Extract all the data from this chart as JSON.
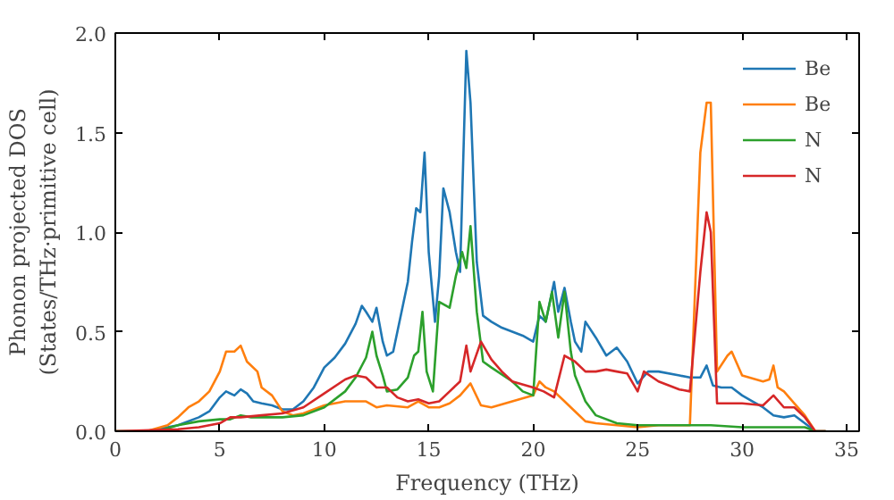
{
  "chart_data": {
    "type": "line",
    "xlabel": "Frequency (THz)",
    "ylabel": "Phonon projected DOS\n(States/THz·primitive cell)",
    "xlim": [
      0,
      35.6
    ],
    "ylim": [
      0,
      2.0
    ],
    "xticks": [
      0,
      5,
      10,
      15,
      20,
      25,
      30,
      35
    ],
    "yticks": [
      {
        "value": 0,
        "label": "0.0"
      },
      {
        "value": 0.5,
        "label": "0.5"
      },
      {
        "value": 1.0,
        "label": "1.0"
      },
      {
        "value": 1.5,
        "label": "1.5"
      },
      {
        "value": 2.0,
        "label": "2.0"
      }
    ],
    "grid": false,
    "legend": "top right",
    "series": [
      {
        "name": "Be",
        "color": "#1f77b4",
        "x": [
          0,
          1.5,
          3,
          4,
          4.5,
          5,
          5.3,
          5.7,
          6,
          6.3,
          6.6,
          7,
          7.5,
          8,
          8.5,
          9,
          9.5,
          10,
          10.5,
          11,
          11.5,
          11.8,
          12,
          12.3,
          12.5,
          12.8,
          13,
          13.3,
          13.5,
          13.8,
          14,
          14.2,
          14.4,
          14.6,
          14.8,
          15,
          15.3,
          15.5,
          15.7,
          16,
          16.3,
          16.5,
          16.8,
          17,
          17.3,
          17.6,
          18,
          18.5,
          19,
          19.5,
          20,
          20.3,
          20.6,
          21,
          21.2,
          21.5,
          21.8,
          22,
          22.3,
          22.5,
          23,
          23.5,
          24,
          24.5,
          25,
          25.5,
          26,
          27,
          27.5,
          28,
          28.3,
          28.6,
          29,
          29.5,
          30,
          30.5,
          31,
          31.5,
          32,
          32.5,
          33,
          33.5,
          34
        ],
        "values": [
          0,
          0,
          0.03,
          0.07,
          0.1,
          0.17,
          0.2,
          0.18,
          0.21,
          0.19,
          0.15,
          0.14,
          0.13,
          0.11,
          0.11,
          0.15,
          0.22,
          0.32,
          0.37,
          0.44,
          0.54,
          0.63,
          0.6,
          0.55,
          0.62,
          0.45,
          0.38,
          0.4,
          0.5,
          0.65,
          0.75,
          0.95,
          1.12,
          1.1,
          1.4,
          0.9,
          0.55,
          0.78,
          1.22,
          1.1,
          0.9,
          0.8,
          1.91,
          1.65,
          0.85,
          0.58,
          0.55,
          0.52,
          0.5,
          0.48,
          0.45,
          0.58,
          0.55,
          0.75,
          0.6,
          0.72,
          0.55,
          0.45,
          0.4,
          0.55,
          0.47,
          0.38,
          0.42,
          0.35,
          0.24,
          0.3,
          0.3,
          0.28,
          0.27,
          0.27,
          0.33,
          0.23,
          0.22,
          0.22,
          0.18,
          0.15,
          0.12,
          0.08,
          0.07,
          0.08,
          0.04,
          0,
          0
        ]
      },
      {
        "name": "Be",
        "color": "#ff7f0e",
        "x": [
          0,
          1.5,
          2.5,
          3,
          3.5,
          4,
          4.5,
          5,
          5.3,
          5.7,
          6,
          6.3,
          6.8,
          7,
          7.5,
          8,
          8.5,
          9,
          10,
          11,
          12,
          12.5,
          13,
          14,
          14.5,
          15,
          15.5,
          16,
          16.5,
          17,
          17.5,
          18,
          19,
          20,
          20.3,
          20.6,
          21,
          21.5,
          22,
          22.5,
          23,
          24,
          25,
          26,
          27,
          27.5,
          28,
          28.3,
          28.5,
          28.8,
          29.3,
          29.5,
          30,
          31,
          31.3,
          31.5,
          31.7,
          32,
          32.5,
          33,
          33.5,
          34
        ],
        "values": [
          0,
          0,
          0.03,
          0.07,
          0.12,
          0.15,
          0.2,
          0.3,
          0.4,
          0.4,
          0.43,
          0.35,
          0.3,
          0.22,
          0.18,
          0.1,
          0.08,
          0.09,
          0.13,
          0.15,
          0.15,
          0.12,
          0.13,
          0.12,
          0.15,
          0.12,
          0.12,
          0.14,
          0.18,
          0.24,
          0.13,
          0.12,
          0.15,
          0.18,
          0.25,
          0.22,
          0.2,
          0.15,
          0.1,
          0.05,
          0.04,
          0.03,
          0.02,
          0.03,
          0.03,
          0.03,
          1.4,
          1.65,
          1.65,
          0.3,
          0.38,
          0.4,
          0.28,
          0.25,
          0.26,
          0.33,
          0.22,
          0.2,
          0.14,
          0.08,
          0,
          0
        ]
      },
      {
        "name": "N",
        "color": "#2ca02c",
        "x": [
          0,
          2,
          3,
          4,
          5,
          5.5,
          6,
          6.5,
          7,
          8,
          9,
          10,
          11,
          11.5,
          12,
          12.3,
          12.5,
          12.8,
          13,
          13.5,
          14,
          14.3,
          14.5,
          14.7,
          14.9,
          15.2,
          15.5,
          16,
          16.3,
          16.6,
          16.8,
          17,
          17.3,
          17.6,
          18,
          19,
          19.5,
          20,
          20.3,
          20.6,
          20.9,
          21.2,
          21.5,
          21.8,
          22,
          22.5,
          23,
          24,
          25,
          26,
          28,
          28.5,
          30,
          33,
          33.5,
          34
        ],
        "values": [
          0,
          0,
          0.03,
          0.05,
          0.06,
          0.06,
          0.08,
          0.07,
          0.07,
          0.07,
          0.08,
          0.12,
          0.2,
          0.27,
          0.37,
          0.5,
          0.38,
          0.28,
          0.2,
          0.21,
          0.27,
          0.38,
          0.4,
          0.6,
          0.3,
          0.2,
          0.65,
          0.62,
          0.78,
          0.9,
          0.82,
          1.03,
          0.6,
          0.35,
          0.32,
          0.25,
          0.2,
          0.18,
          0.65,
          0.55,
          0.7,
          0.47,
          0.7,
          0.4,
          0.28,
          0.15,
          0.08,
          0.04,
          0.03,
          0.03,
          0.03,
          0.03,
          0.02,
          0.02,
          0,
          0
        ]
      },
      {
        "name": "N",
        "color": "#d62728",
        "x": [
          0,
          3,
          4,
          5,
          5.5,
          6,
          7,
          8,
          9,
          10,
          11,
          11.5,
          12,
          12.5,
          13,
          13.5,
          14,
          14.5,
          15,
          15.5,
          16,
          16.5,
          16.8,
          17,
          17.5,
          18,
          18.5,
          19,
          20,
          20.5,
          21,
          21.5,
          22,
          22.5,
          23,
          23.5,
          24,
          24.5,
          25,
          25.3,
          26,
          27,
          27.5,
          28,
          28.3,
          28.5,
          28.8,
          29.5,
          30,
          31,
          31.5,
          32,
          32.5,
          33,
          33.5,
          34
        ],
        "values": [
          0,
          0.01,
          0.02,
          0.04,
          0.07,
          0.07,
          0.08,
          0.09,
          0.12,
          0.19,
          0.26,
          0.28,
          0.27,
          0.22,
          0.22,
          0.17,
          0.15,
          0.16,
          0.14,
          0.15,
          0.2,
          0.25,
          0.43,
          0.3,
          0.45,
          0.36,
          0.3,
          0.25,
          0.22,
          0.2,
          0.17,
          0.38,
          0.35,
          0.3,
          0.3,
          0.31,
          0.3,
          0.29,
          0.2,
          0.3,
          0.25,
          0.21,
          0.2,
          0.8,
          1.1,
          1.0,
          0.14,
          0.14,
          0.14,
          0.13,
          0.18,
          0.12,
          0.12,
          0.07,
          0,
          0
        ]
      }
    ]
  }
}
